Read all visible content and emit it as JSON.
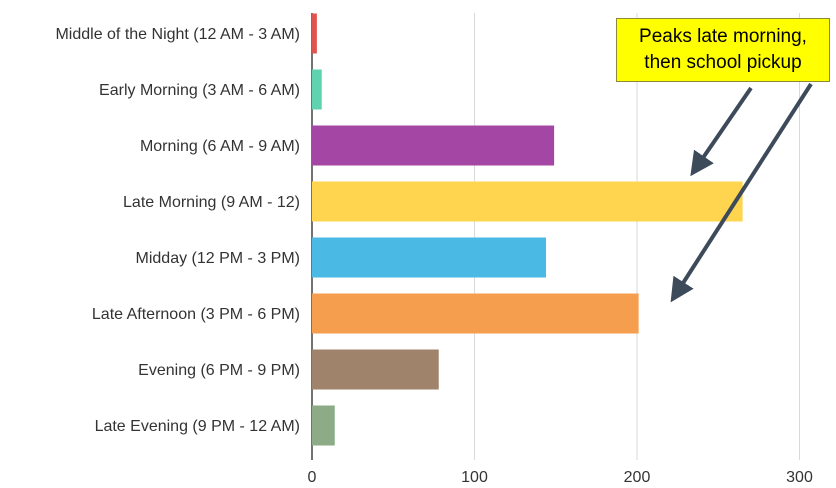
{
  "chart_data": {
    "type": "bar",
    "orientation": "horizontal",
    "categories": [
      "Middle of the Night (12 AM - 3 AM)",
      "Early Morning (3 AM - 6 AM)",
      "Morning (6 AM - 9 AM)",
      "Late Morning (9 AM - 12)",
      "Midday (12 PM - 3 PM)",
      "Late Afternoon (3 PM - 6 PM)",
      "Evening (6 PM - 9 PM)",
      "Late Evening (9 PM - 12 AM)"
    ],
    "values": [
      3,
      6,
      149,
      265,
      144,
      201,
      78,
      14
    ],
    "colors": [
      "#e0534f",
      "#5fd3b0",
      "#a346a4",
      "#ffd44f",
      "#4ab9e3",
      "#f59e4e",
      "#a0836b",
      "#8cab86"
    ],
    "xticks": [
      0,
      100,
      200,
      300
    ],
    "xlim": [
      0,
      320
    ],
    "grid": true
  },
  "annotation": {
    "line1": "Peaks late morning,",
    "line2": "then school pickup",
    "background": "#ffff00",
    "arrow_color": "#3c4a5a"
  }
}
